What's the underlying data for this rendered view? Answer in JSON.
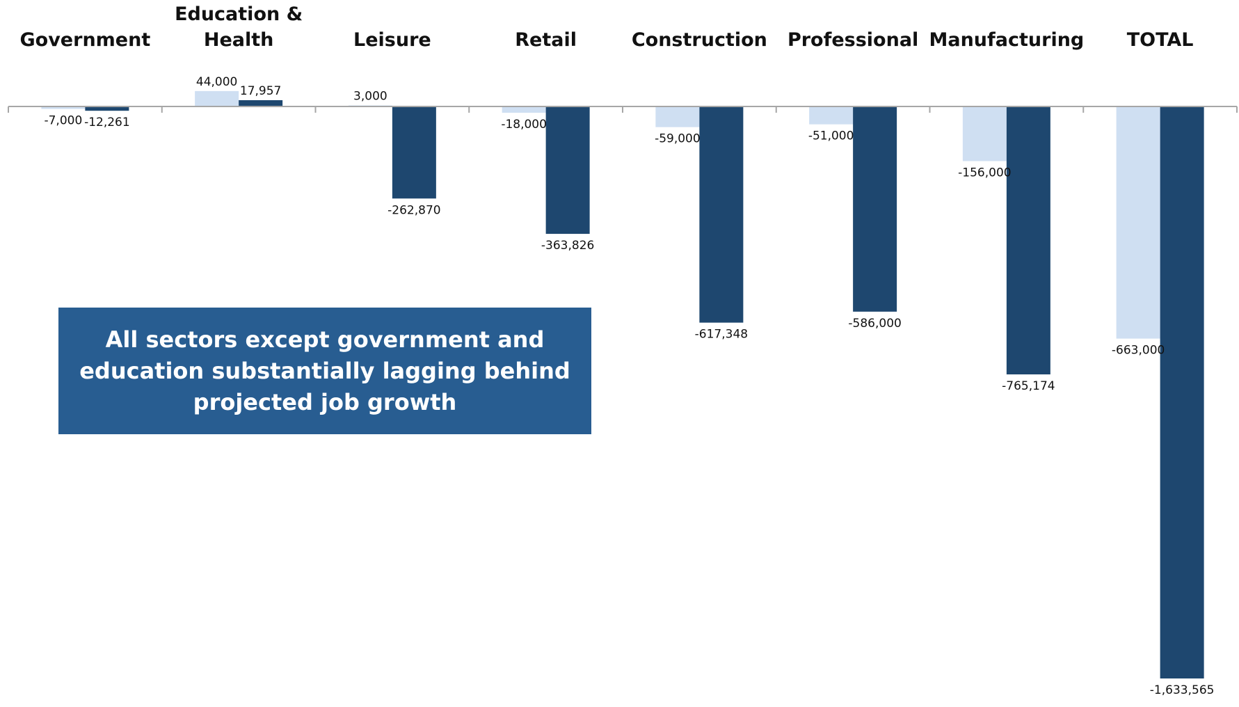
{
  "chart_data": {
    "type": "bar",
    "categories": [
      [
        "Government"
      ],
      [
        "Education &",
        "Health"
      ],
      [
        "Leisure"
      ],
      [
        "Retail"
      ],
      [
        "Construction"
      ],
      [
        "Professional"
      ],
      [
        "Manufacturing"
      ],
      [
        "TOTAL"
      ]
    ],
    "series": [
      {
        "values": [
          -7000,
          44000,
          3000,
          -18000,
          -59000,
          -51000,
          -156000,
          -663000
        ],
        "labels": [
          "-7,000",
          "44,000",
          "3,000",
          "-18,000",
          "-59,000",
          "-51,000",
          "-156,000",
          "-663,000"
        ],
        "color": "#cfdff2"
      },
      {
        "values": [
          -12261,
          17957,
          -262870,
          -363826,
          -617348,
          -586000,
          -765174,
          -1633565
        ],
        "labels": [
          "-12,261",
          "17,957",
          "-262,870",
          "-363,826",
          "-617,348",
          "-586,000",
          "-765,174",
          "-1,633,565"
        ],
        "color": "#1e476f"
      }
    ],
    "ylim": [
      -1633565,
      44000
    ],
    "grid": false,
    "legend": "none"
  },
  "callout": {
    "text": "All sectors except government and education substantially lagging behind projected job growth",
    "color": "#285d91"
  },
  "colors": {
    "axis": "#a6a6a6",
    "text": "#111111"
  }
}
